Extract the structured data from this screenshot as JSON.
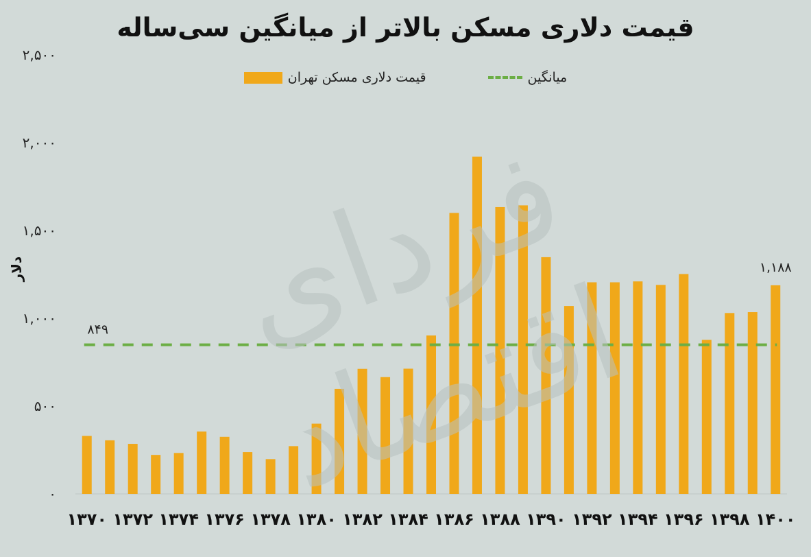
{
  "chart_data": {
    "type": "bar",
    "title": "قیمت دلاری مسکن بالاتر از میانگین سی‌ساله",
    "ylabel": "دلار",
    "xlabel": "",
    "ylim": [
      0,
      2500
    ],
    "yticks": [
      0,
      500,
      1000,
      1500,
      2000,
      2500
    ],
    "ytick_labels": [
      "۰",
      "۵۰۰",
      "۱,۰۰۰",
      "۱,۵۰۰",
      "۲,۰۰۰",
      "۲,۵۰۰"
    ],
    "categories": [
      "1370",
      "1371",
      "1372",
      "1373",
      "1374",
      "1375",
      "1376",
      "1377",
      "1378",
      "1379",
      "1380",
      "1381",
      "1382",
      "1383",
      "1384",
      "1385",
      "1386",
      "1387",
      "1388",
      "1389",
      "1390",
      "1391",
      "1392",
      "1393",
      "1394",
      "1395",
      "1396",
      "1397",
      "1398",
      "1399",
      "1400"
    ],
    "xtick_labels": [
      "۱۳۷۰",
      "۱۳۷۲",
      "۱۳۷۴",
      "۱۳۷۶",
      "۱۳۷۸",
      "۱۳۸۰",
      "۱۳۸۲",
      "۱۳۸۴",
      "۱۳۸۶",
      "۱۳۸۸",
      "۱۳۹۰",
      "۱۳۹۲",
      "۱۳۹۴",
      "۱۳۹۶",
      "۱۳۹۸",
      "۱۴۰۰"
    ],
    "series": [
      {
        "name": "قیمت دلاری مسکن تهران",
        "color": "#f0a81a",
        "values": [
          330,
          305,
          285,
          222,
          233,
          355,
          325,
          238,
          198,
          272,
          400,
          598,
          712,
          665,
          713,
          902,
          1600,
          1920,
          1633,
          1643,
          1348,
          1070,
          1205,
          1205,
          1210,
          1190,
          1252,
          877,
          1030,
          1035,
          1188
        ]
      }
    ],
    "average": {
      "name": "میانگین",
      "value": 849,
      "color": "#6cae45",
      "label": "۸۴۹"
    },
    "last_value_label": "۱,۱۸۸",
    "grid": false,
    "legend_position": "top"
  },
  "watermark": "فردای اقتصاد"
}
